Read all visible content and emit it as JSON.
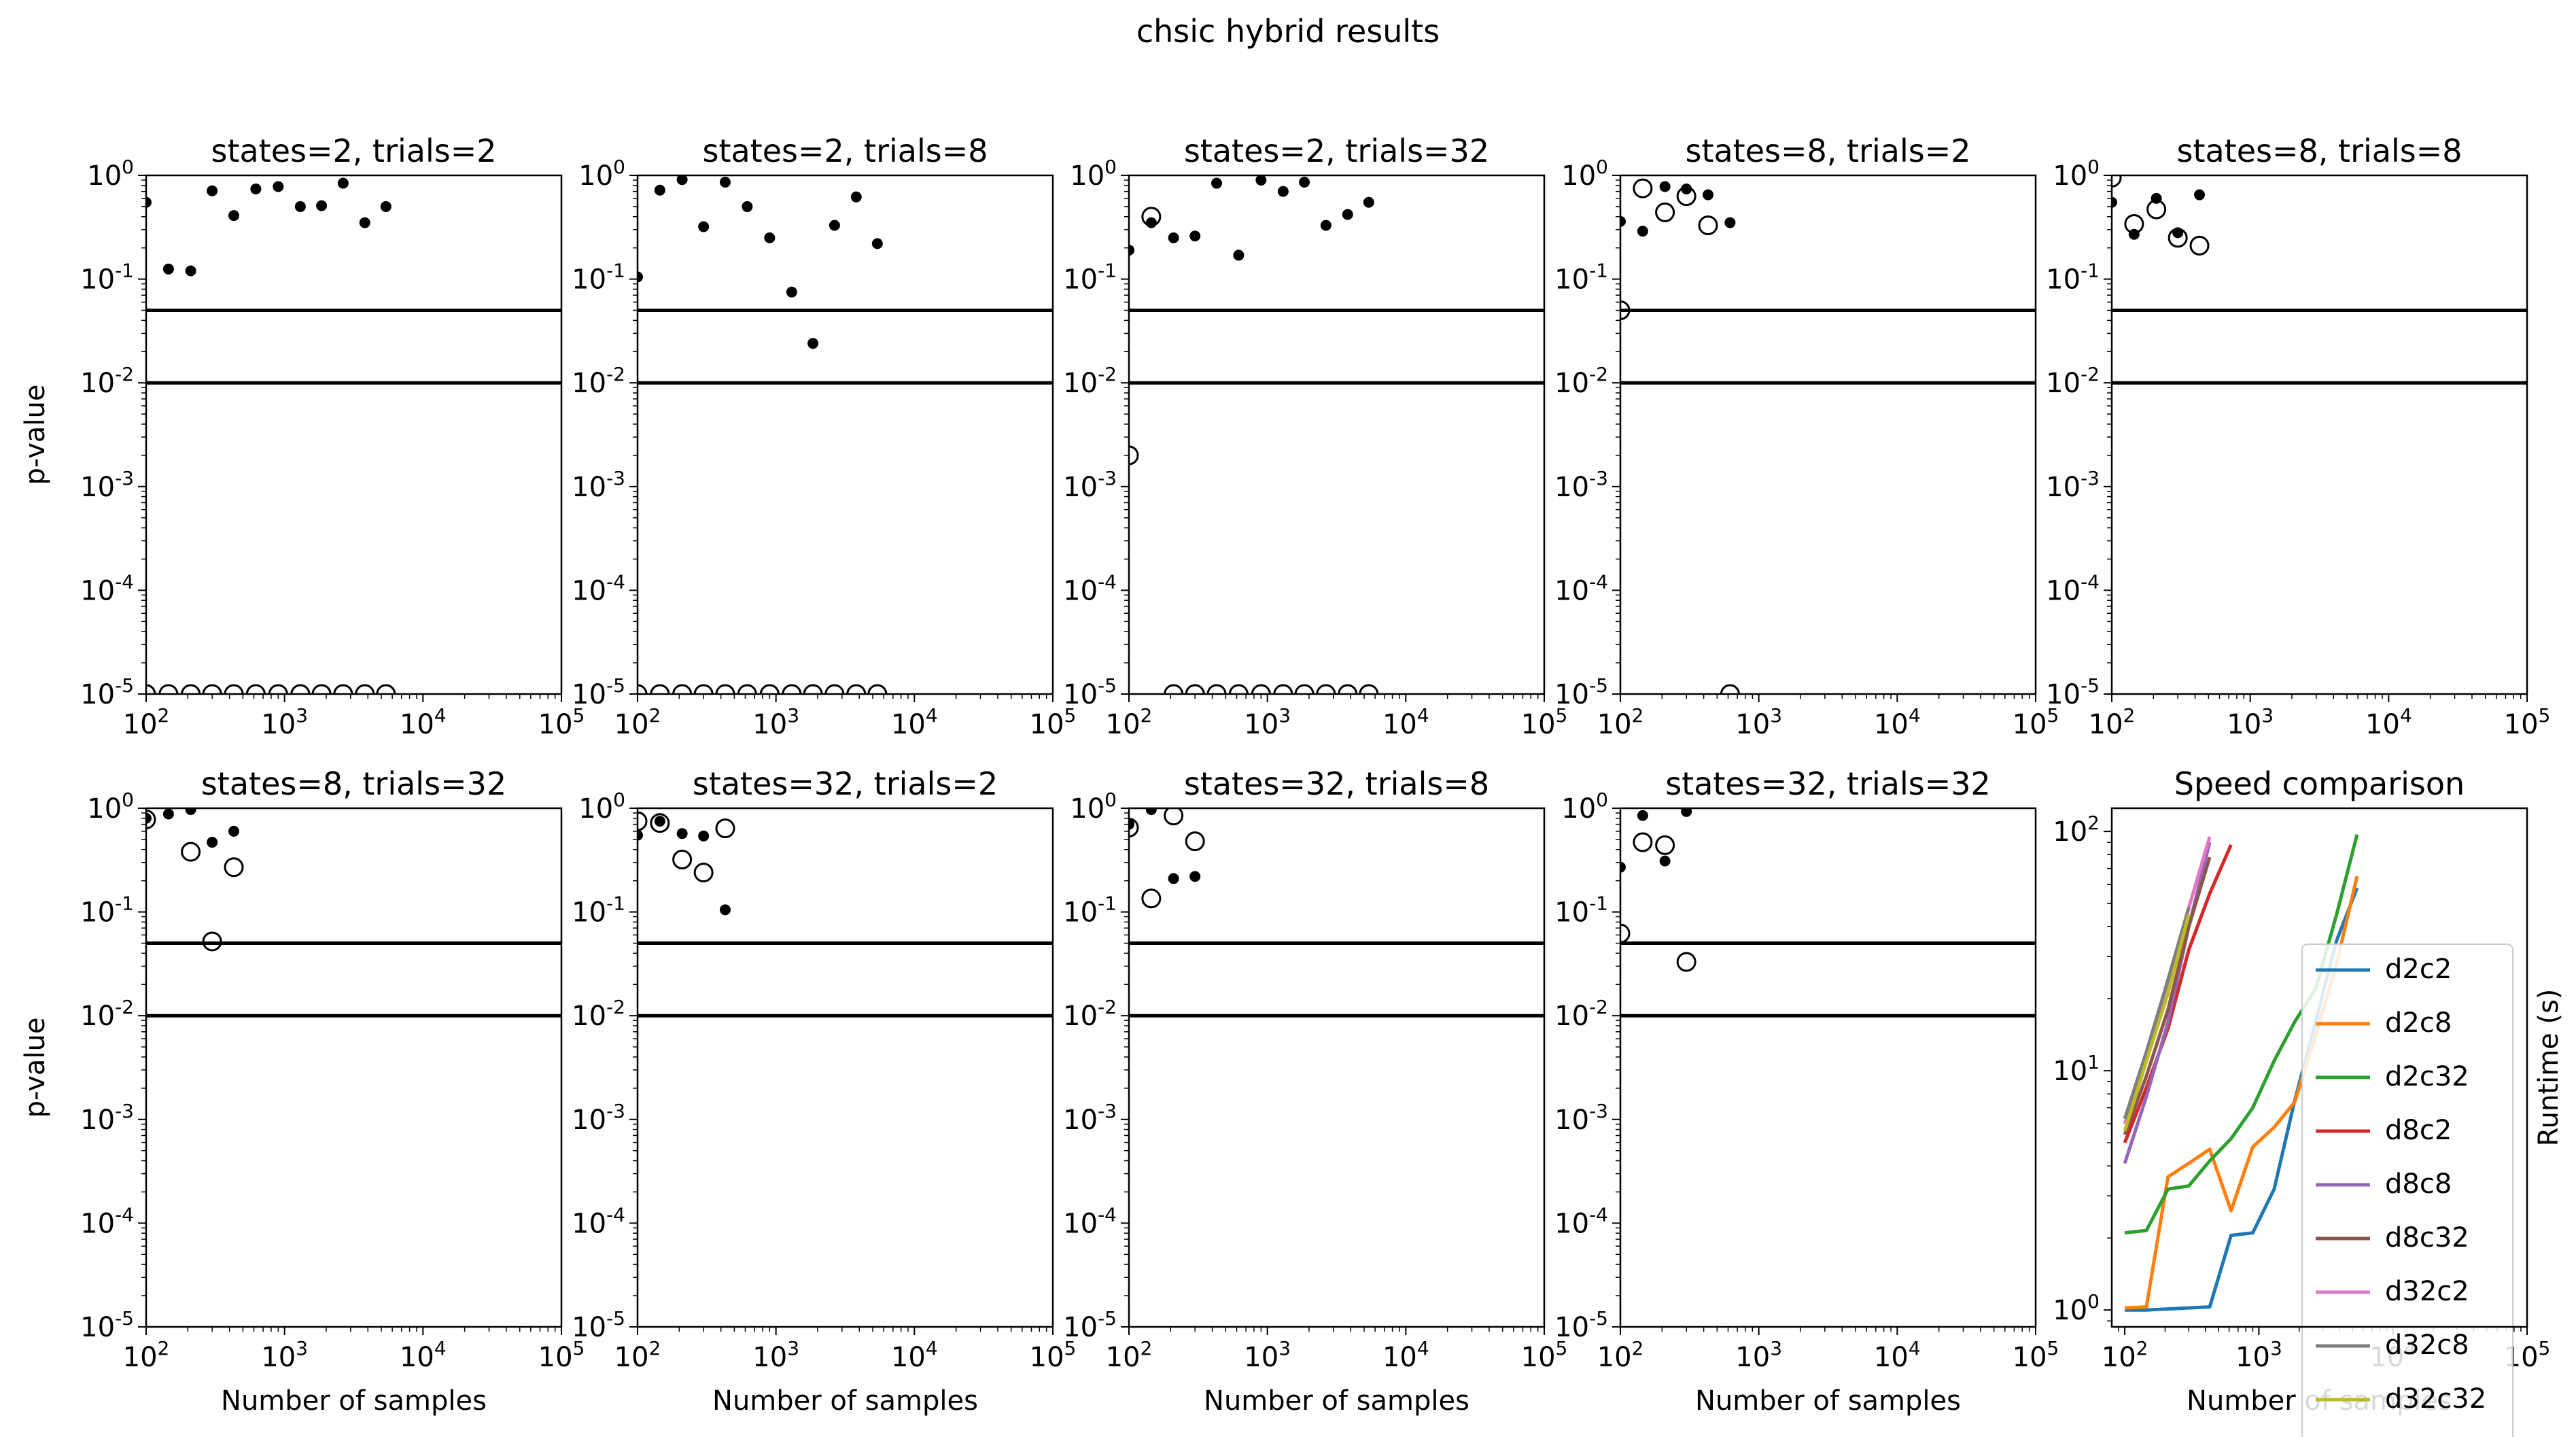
{
  "figure": {
    "title": "chsic hybrid results"
  },
  "chart_data": [
    {
      "type": "scatter",
      "title": "states=2, trials=2",
      "xlabel": "",
      "ylabel": "p-value",
      "xscale": "log",
      "yscale": "log",
      "xlim": [
        100,
        100000
      ],
      "ylim": [
        1e-05,
        1
      ],
      "hlines": [
        0.05,
        0.01
      ],
      "series": [
        {
          "marker": "filled-dot",
          "x": [
            100,
            145,
            210,
            300,
            430,
            620,
            900,
            1300,
            1850,
            2650,
            3800,
            5400
          ],
          "y": [
            0.55,
            0.125,
            0.12,
            0.71,
            0.41,
            0.74,
            0.78,
            0.5,
            0.51,
            0.84,
            0.35,
            0.5
          ]
        },
        {
          "marker": "open-circle",
          "x": [
            100,
            145,
            210,
            300,
            430,
            620,
            900,
            1300,
            1850,
            2650,
            3800,
            5400
          ],
          "y": [
            1e-05,
            1e-05,
            1e-05,
            1e-05,
            1e-05,
            1e-05,
            1e-05,
            1e-05,
            1e-05,
            1e-05,
            1e-05,
            1e-05
          ]
        }
      ]
    },
    {
      "type": "scatter",
      "title": "states=2, trials=8",
      "xlabel": "",
      "ylabel": "",
      "xscale": "log",
      "yscale": "log",
      "xlim": [
        100,
        100000
      ],
      "ylim": [
        1e-05,
        1
      ],
      "hlines": [
        0.05,
        0.01
      ],
      "series": [
        {
          "marker": "filled-dot",
          "x": [
            100,
            145,
            210,
            300,
            430,
            620,
            900,
            1300,
            1850,
            2650,
            3800,
            5400
          ],
          "y": [
            0.105,
            0.72,
            0.91,
            0.32,
            0.86,
            0.5,
            0.25,
            0.075,
            0.024,
            0.33,
            0.62,
            0.22
          ]
        },
        {
          "marker": "open-circle",
          "x": [
            100,
            145,
            210,
            300,
            430,
            620,
            900,
            1300,
            1850,
            2650,
            3800,
            5400
          ],
          "y": [
            1e-05,
            1e-05,
            1e-05,
            1e-05,
            1e-05,
            1e-05,
            1e-05,
            1e-05,
            1e-05,
            1e-05,
            1e-05,
            1e-05
          ]
        }
      ]
    },
    {
      "type": "scatter",
      "title": "states=2, trials=32",
      "xlabel": "",
      "ylabel": "",
      "xscale": "log",
      "yscale": "log",
      "xlim": [
        100,
        100000
      ],
      "ylim": [
        1e-05,
        1
      ],
      "hlines": [
        0.05,
        0.01
      ],
      "series": [
        {
          "marker": "filled-dot",
          "x": [
            100,
            145,
            210,
            300,
            430,
            620,
            900,
            1300,
            1850,
            2650,
            3800,
            5400
          ],
          "y": [
            0.19,
            0.35,
            0.25,
            0.26,
            0.84,
            0.17,
            0.9,
            0.7,
            0.86,
            0.33,
            0.42,
            0.55
          ]
        },
        {
          "marker": "open-circle",
          "x": [
            100,
            145,
            210,
            300,
            430,
            620,
            900,
            1300,
            1850,
            2650,
            3800,
            5400
          ],
          "y": [
            0.002,
            0.4,
            1e-05,
            1e-05,
            1e-05,
            1e-05,
            1e-05,
            1e-05,
            1e-05,
            1e-05,
            1e-05,
            1e-05
          ]
        }
      ]
    },
    {
      "type": "scatter",
      "title": "states=8, trials=2",
      "xlabel": "",
      "ylabel": "",
      "xscale": "log",
      "yscale": "log",
      "xlim": [
        100,
        100000
      ],
      "ylim": [
        1e-05,
        1
      ],
      "hlines": [
        0.05,
        0.01
      ],
      "series": [
        {
          "marker": "filled-dot",
          "x": [
            100,
            145,
            210,
            300,
            430,
            620
          ],
          "y": [
            0.36,
            0.29,
            0.78,
            0.74,
            0.65,
            0.35
          ]
        },
        {
          "marker": "open-circle",
          "x": [
            100,
            145,
            210,
            300,
            430,
            620
          ],
          "y": [
            0.05,
            0.75,
            0.44,
            0.63,
            0.33,
            1e-05
          ]
        }
      ]
    },
    {
      "type": "scatter",
      "title": "states=8, trials=8",
      "xlabel": "",
      "ylabel": "",
      "xscale": "log",
      "yscale": "log",
      "xlim": [
        100,
        100000
      ],
      "ylim": [
        1e-05,
        1
      ],
      "hlines": [
        0.05,
        0.01
      ],
      "series": [
        {
          "marker": "filled-dot",
          "x": [
            100,
            145,
            210,
            300,
            430
          ],
          "y": [
            0.55,
            0.27,
            0.6,
            0.28,
            0.65
          ]
        },
        {
          "marker": "open-circle",
          "x": [
            100,
            145,
            210,
            300,
            430
          ],
          "y": [
            0.95,
            0.34,
            0.47,
            0.25,
            0.21
          ]
        }
      ]
    },
    {
      "type": "scatter",
      "title": "states=8, trials=32",
      "xlabel": "Number of samples",
      "ylabel": "p-value",
      "xscale": "log",
      "yscale": "log",
      "xlim": [
        100,
        100000
      ],
      "ylim": [
        1e-05,
        1
      ],
      "hlines": [
        0.05,
        0.01
      ],
      "series": [
        {
          "marker": "filled-dot",
          "x": [
            100,
            145,
            210,
            300,
            430
          ],
          "y": [
            0.8,
            0.88,
            0.97,
            0.47,
            0.6
          ]
        },
        {
          "marker": "open-circle",
          "x": [
            100,
            210,
            300,
            430
          ],
          "y": [
            0.78,
            0.38,
            0.052,
            0.27
          ]
        }
      ]
    },
    {
      "type": "scatter",
      "title": "states=32, trials=2",
      "xlabel": "Number of samples",
      "ylabel": "",
      "xscale": "log",
      "yscale": "log",
      "xlim": [
        100,
        100000
      ],
      "ylim": [
        1e-05,
        1
      ],
      "hlines": [
        0.05,
        0.01
      ],
      "series": [
        {
          "marker": "filled-dot",
          "x": [
            100,
            145,
            210,
            300,
            430
          ],
          "y": [
            0.55,
            0.75,
            0.57,
            0.54,
            0.105
          ]
        },
        {
          "marker": "open-circle",
          "x": [
            100,
            145,
            210,
            300,
            430
          ],
          "y": [
            0.75,
            0.72,
            0.32,
            0.24,
            0.64
          ]
        }
      ]
    },
    {
      "type": "scatter",
      "title": "states=32, trials=8",
      "xlabel": "Number of samples",
      "ylabel": "",
      "xscale": "log",
      "yscale": "log",
      "xlim": [
        100,
        100000
      ],
      "ylim": [
        1e-05,
        1
      ],
      "hlines": [
        0.05,
        0.01
      ],
      "series": [
        {
          "marker": "filled-dot",
          "x": [
            100,
            145,
            210,
            300
          ],
          "y": [
            0.7,
            0.97,
            0.21,
            0.22
          ]
        },
        {
          "marker": "open-circle",
          "x": [
            100,
            145,
            210,
            300
          ],
          "y": [
            0.65,
            0.135,
            0.85,
            0.48
          ]
        }
      ]
    },
    {
      "type": "scatter",
      "title": "states=32, trials=32",
      "xlabel": "Number of samples",
      "ylabel": "",
      "xscale": "log",
      "yscale": "log",
      "xlim": [
        100,
        100000
      ],
      "ylim": [
        1e-05,
        1
      ],
      "hlines": [
        0.05,
        0.01
      ],
      "series": [
        {
          "marker": "filled-dot",
          "x": [
            100,
            145,
            210,
            300
          ],
          "y": [
            0.27,
            0.85,
            0.31,
            0.93
          ]
        },
        {
          "marker": "open-circle",
          "x": [
            100,
            145,
            210,
            300
          ],
          "y": [
            0.062,
            0.47,
            0.44,
            0.033
          ]
        }
      ]
    },
    {
      "type": "line",
      "title": "Speed comparison",
      "xlabel": "Number of samples",
      "ylabel": "Runtime (s)",
      "xscale": "log",
      "yscale": "log",
      "xlim": [
        80,
        100000
      ],
      "ylim": [
        0.85,
        125
      ],
      "legend": "right",
      "series": [
        {
          "name": "d2c2",
          "color": "#1f77b4",
          "x": [
            100,
            145,
            210,
            300,
            430,
            620,
            900,
            1300,
            1850,
            2650,
            3800,
            5400
          ],
          "y": [
            1.0,
            1.0,
            1.01,
            1.02,
            1.03,
            2.05,
            2.1,
            3.2,
            7.5,
            16,
            35,
            58
          ]
        },
        {
          "name": "d2c8",
          "color": "#ff7f0e",
          "x": [
            100,
            145,
            210,
            300,
            430,
            620,
            900,
            1300,
            1850,
            2650,
            3800,
            5400
          ],
          "y": [
            1.02,
            1.03,
            3.6,
            4.1,
            4.7,
            2.6,
            4.8,
            5.8,
            7.4,
            14,
            28,
            65
          ]
        },
        {
          "name": "d2c32",
          "color": "#2ca02c",
          "x": [
            100,
            145,
            210,
            300,
            430,
            620,
            900,
            1300,
            1850,
            2650,
            3800,
            5400
          ],
          "y": [
            2.1,
            2.15,
            3.2,
            3.3,
            4.2,
            5.2,
            7.0,
            11,
            16,
            22,
            45,
            97
          ]
        },
        {
          "name": "d8c2",
          "color": "#d62728",
          "x": [
            100,
            145,
            210,
            300,
            430,
            620
          ],
          "y": [
            5.0,
            8.5,
            15,
            32,
            55,
            88
          ]
        },
        {
          "name": "d8c8",
          "color": "#9467bd",
          "x": [
            100,
            145,
            210,
            300,
            430
          ],
          "y": [
            4.1,
            7.8,
            16,
            40,
            90
          ]
        },
        {
          "name": "d8c32",
          "color": "#8c564b",
          "x": [
            100,
            145,
            210,
            300,
            430
          ],
          "y": [
            5.4,
            9.5,
            18,
            40,
            78
          ]
        },
        {
          "name": "d32c2",
          "color": "#e377c2",
          "x": [
            100,
            145,
            210,
            300,
            430
          ],
          "y": [
            6.0,
            11,
            22,
            48,
            95
          ]
        },
        {
          "name": "d32c8",
          "color": "#7f7f7f",
          "x": [
            100,
            145,
            210,
            300
          ],
          "y": [
            6.3,
            12,
            24,
            48
          ]
        },
        {
          "name": "d32c32",
          "color": "#bcbd22",
          "x": [
            100,
            145,
            210,
            300
          ],
          "y": [
            5.6,
            11,
            21,
            45
          ]
        }
      ]
    }
  ]
}
